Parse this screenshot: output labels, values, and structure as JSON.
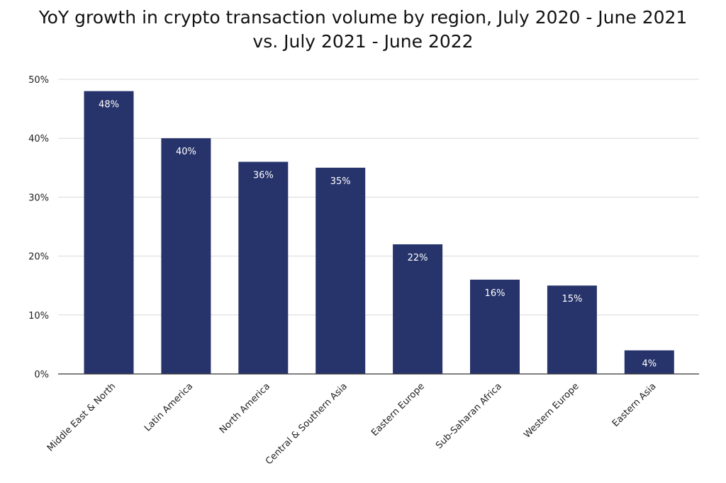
{
  "chart_data": {
    "type": "bar",
    "title_line1": "YoY growth in crypto transaction volume by region, July 2020 - June 2021",
    "title_line2": "vs. July 2021 - June 2022",
    "xlabel": "",
    "ylabel": "",
    "ylim": [
      0,
      50
    ],
    "yticks": [
      0,
      10,
      20,
      30,
      40,
      50
    ],
    "ytick_labels": [
      "0%",
      "10%",
      "20%",
      "30%",
      "40%",
      "50%"
    ],
    "categories": [
      "Middle East & North",
      "Latin America",
      "North America",
      "Central & Southern Asia",
      "Eastern Europe",
      "Sub-Saharan Africa",
      "Western Europe",
      "Eastern Asia"
    ],
    "values": [
      48,
      40,
      36,
      35,
      22,
      16,
      15,
      4
    ],
    "data_labels": [
      "48%",
      "40%",
      "36%",
      "35%",
      "22%",
      "16%",
      "15%",
      "4%"
    ],
    "grid": true,
    "bar_color": "#27346b",
    "grid_color": "#d9d9d9",
    "axis_color": "#333333"
  }
}
